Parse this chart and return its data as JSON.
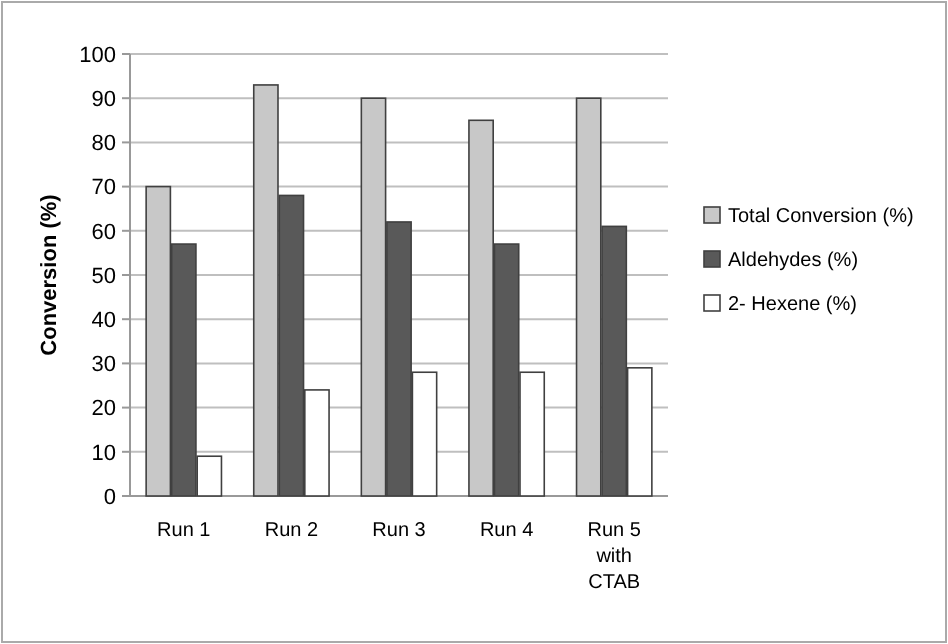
{
  "chart_data": {
    "type": "bar",
    "ylabel": "Conversion (%)",
    "categories": [
      "Run 1",
      "Run 2",
      "Run 3",
      "Run 4",
      "Run 5 with CTAB"
    ],
    "series": [
      {
        "name": "Total Conversion (%)",
        "color": "#c8c8c8",
        "values": [
          70,
          93,
          90,
          85,
          90
        ]
      },
      {
        "name": "Aldehydes (%)",
        "color": "#595959",
        "values": [
          57,
          68,
          62,
          57,
          61
        ]
      },
      {
        "name": "2- Hexene (%)",
        "color": "#ffffff",
        "values": [
          9,
          24,
          28,
          28,
          29
        ]
      }
    ],
    "ylim": [
      0,
      100
    ],
    "yticks": [
      0,
      10,
      20,
      30,
      40,
      50,
      60,
      70,
      80,
      90,
      100
    ],
    "grid": "y",
    "legend": "right"
  }
}
